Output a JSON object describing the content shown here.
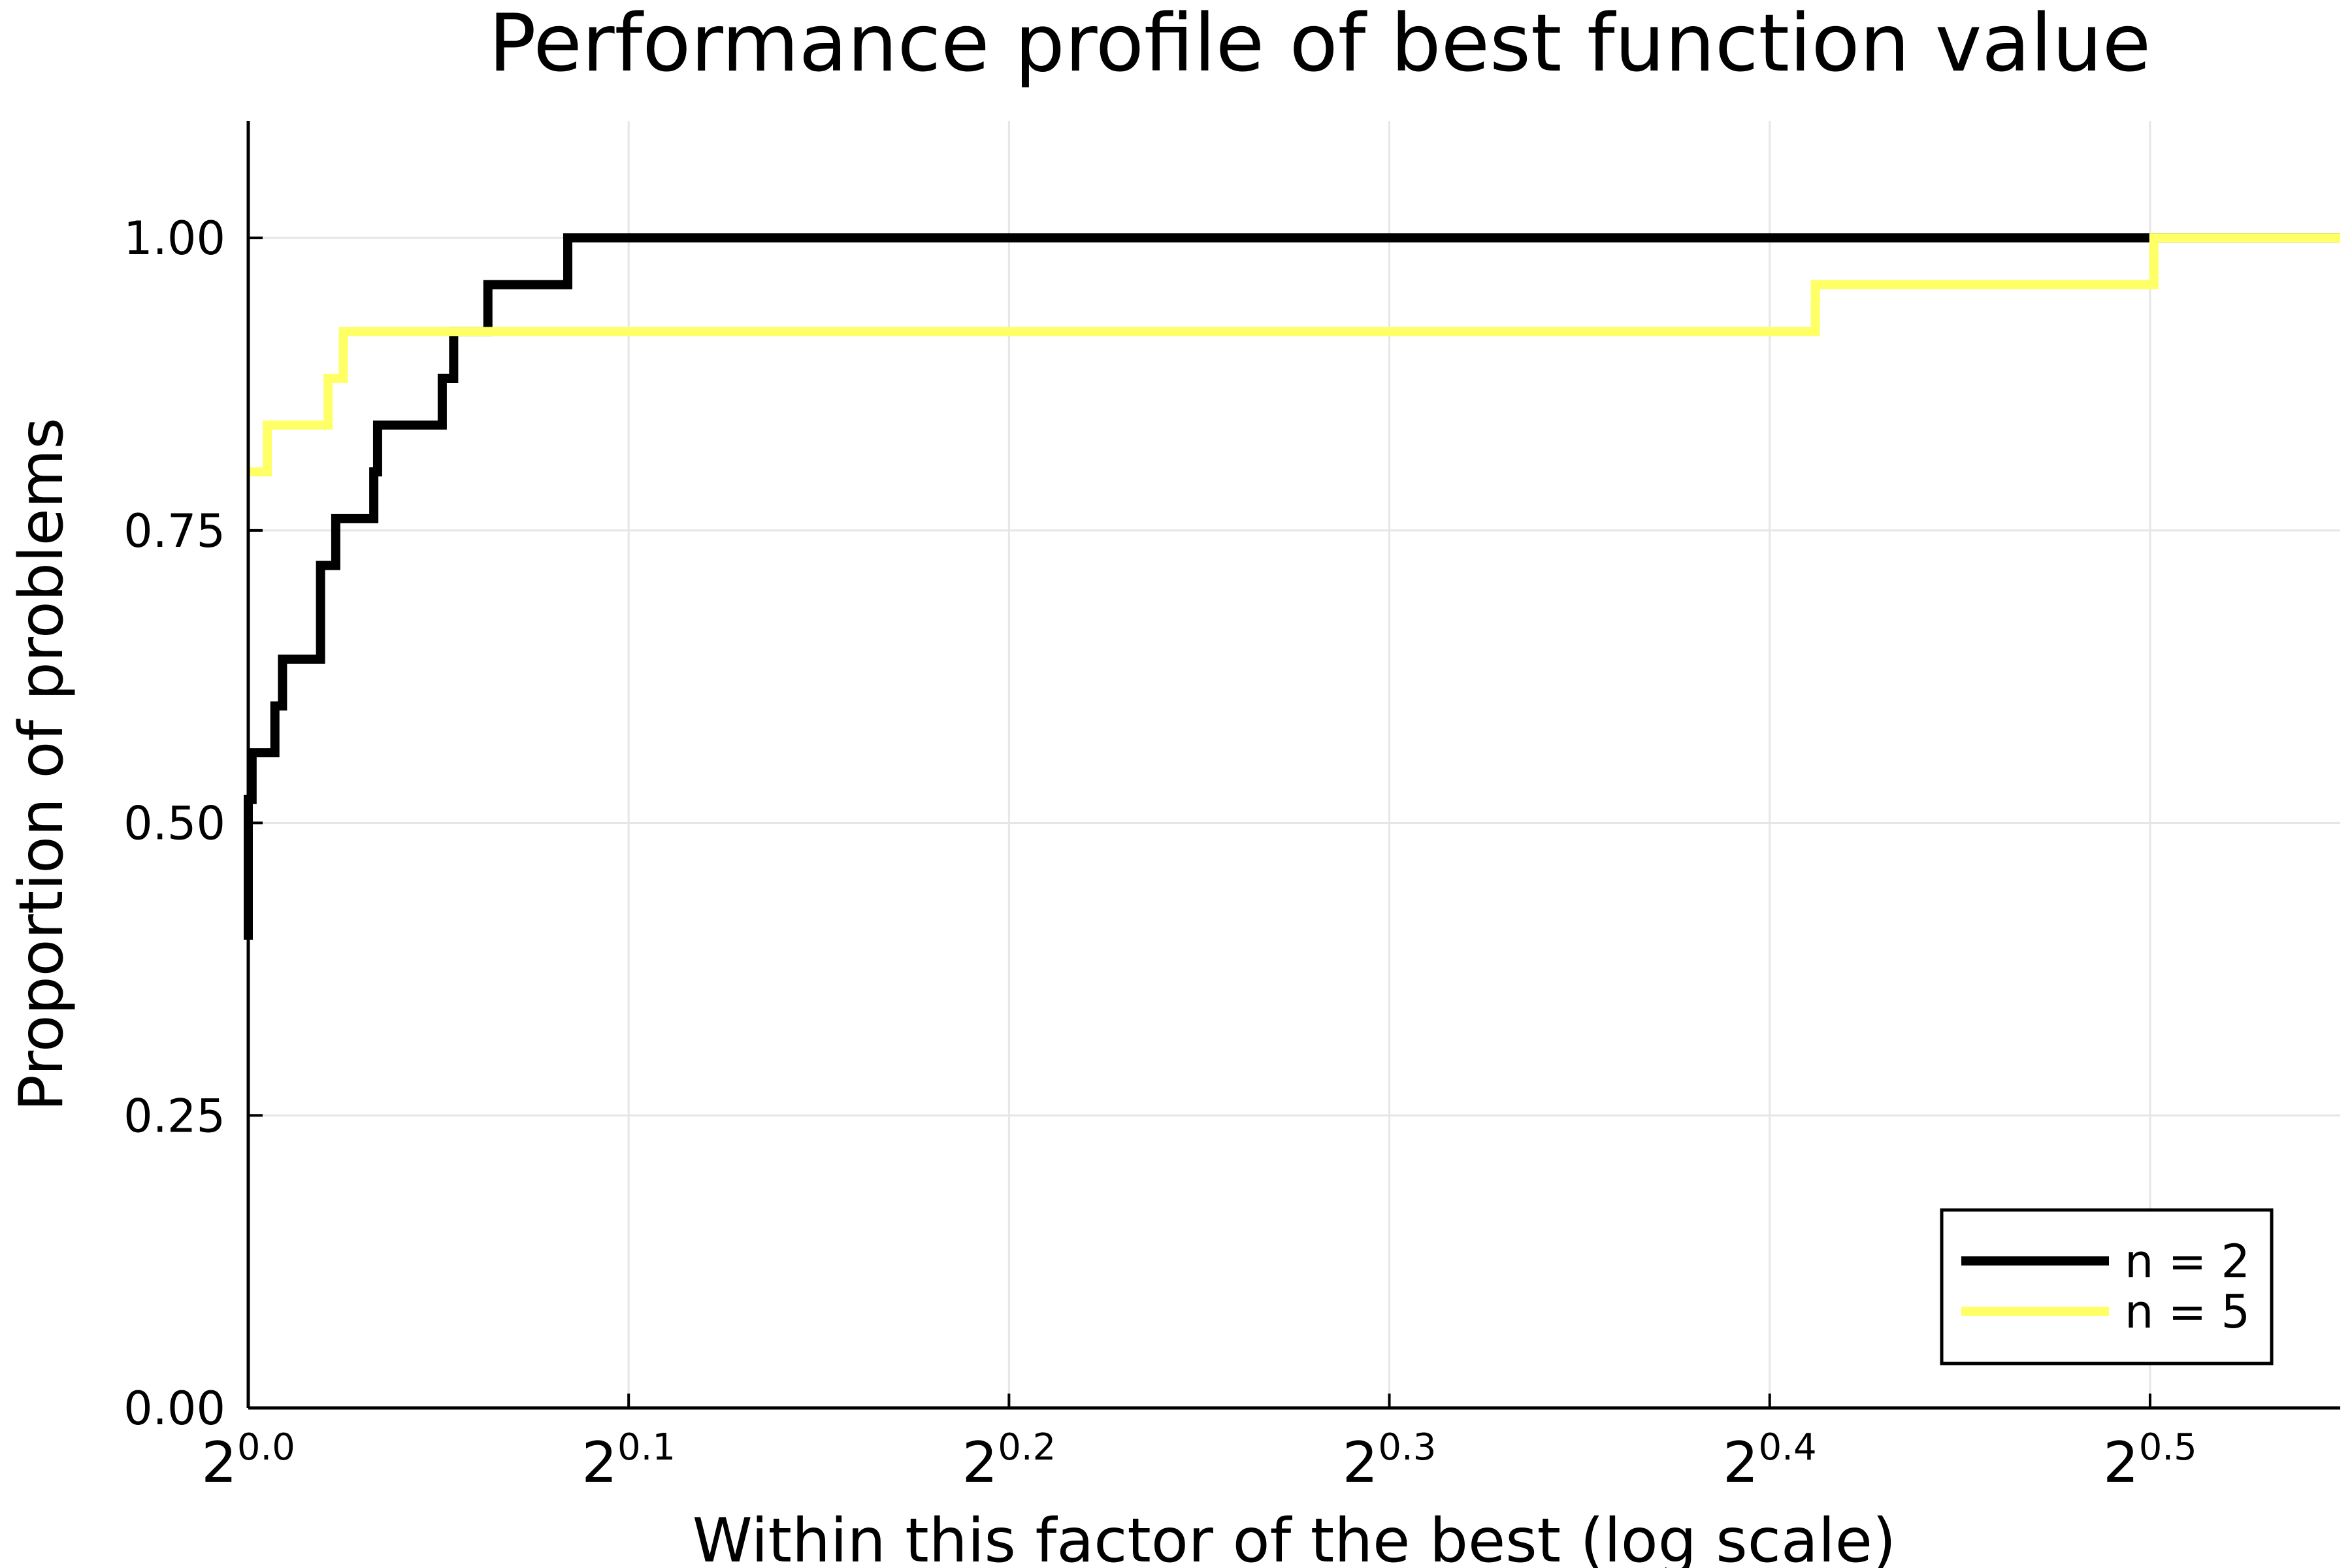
{
  "chart_data": {
    "type": "line",
    "title": "Performance profile of best function value",
    "xlabel": "Within this factor of the best (log scale)",
    "ylabel": "Proportion of problems",
    "x_scale": "log2",
    "xlim_exponent": [
      0.0,
      0.55
    ],
    "ylim": [
      0.0,
      1.1
    ],
    "x_ticks": [
      {
        "base": "2",
        "exp": "0.0"
      },
      {
        "base": "2",
        "exp": "0.1"
      },
      {
        "base": "2",
        "exp": "0.2"
      },
      {
        "base": "2",
        "exp": "0.3"
      },
      {
        "base": "2",
        "exp": "0.4"
      },
      {
        "base": "2",
        "exp": "0.5"
      }
    ],
    "x_tick_exponents": [
      0.0,
      0.1,
      0.2,
      0.3,
      0.4,
      0.5
    ],
    "y_ticks": [
      0.0,
      0.25,
      0.5,
      0.75,
      1.0
    ],
    "y_tick_labels": [
      "0.00",
      "0.25",
      "0.50",
      "0.75",
      "1.00"
    ],
    "grid": true,
    "legend_position": "bottom-right",
    "series": [
      {
        "name": "n = 2",
        "color": "#000000",
        "step": true,
        "x_exponent": [
          0.0,
          0.0,
          0.001,
          0.007,
          0.009,
          0.019,
          0.023,
          0.033,
          0.034,
          0.051,
          0.054,
          0.063,
          0.084,
          0.55
        ],
        "values": [
          0.4,
          0.52,
          0.56,
          0.6,
          0.64,
          0.72,
          0.76,
          0.8,
          0.84,
          0.88,
          0.92,
          0.96,
          1.0,
          1.0
        ]
      },
      {
        "name": "n = 5",
        "color": "#ffff66",
        "step": true,
        "x_exponent": [
          0.0,
          0.005,
          0.021,
          0.025,
          0.412,
          0.501,
          0.55
        ],
        "values": [
          0.8,
          0.84,
          0.88,
          0.92,
          0.96,
          1.0,
          1.0
        ]
      }
    ]
  }
}
